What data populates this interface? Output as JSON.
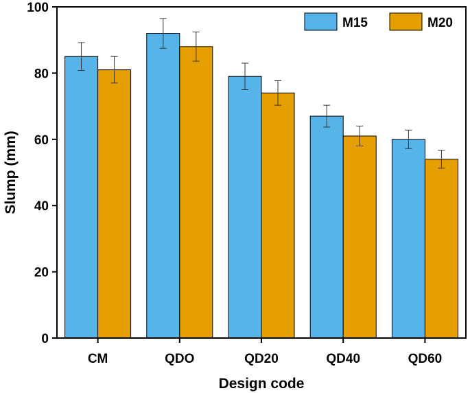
{
  "chart_data": {
    "type": "bar",
    "title": "",
    "xlabel": "Design code",
    "ylabel": "Slump (mm)",
    "ylim": [
      0,
      100
    ],
    "yticks": [
      0,
      20,
      40,
      60,
      80,
      100
    ],
    "categories": [
      "CM",
      "QDO",
      "QD20",
      "QD40",
      "QD60"
    ],
    "series": [
      {
        "name": "M15",
        "color": "#56B4E9",
        "values": [
          85,
          92,
          79,
          67,
          60
        ],
        "errors": [
          4.2,
          4.5,
          4.0,
          3.3,
          2.8
        ]
      },
      {
        "name": "M20",
        "color": "#E69F00",
        "values": [
          81,
          88,
          74,
          61,
          54
        ],
        "errors": [
          4.0,
          4.4,
          3.7,
          3.0,
          2.7
        ]
      }
    ],
    "legend_position": "top-right"
  }
}
